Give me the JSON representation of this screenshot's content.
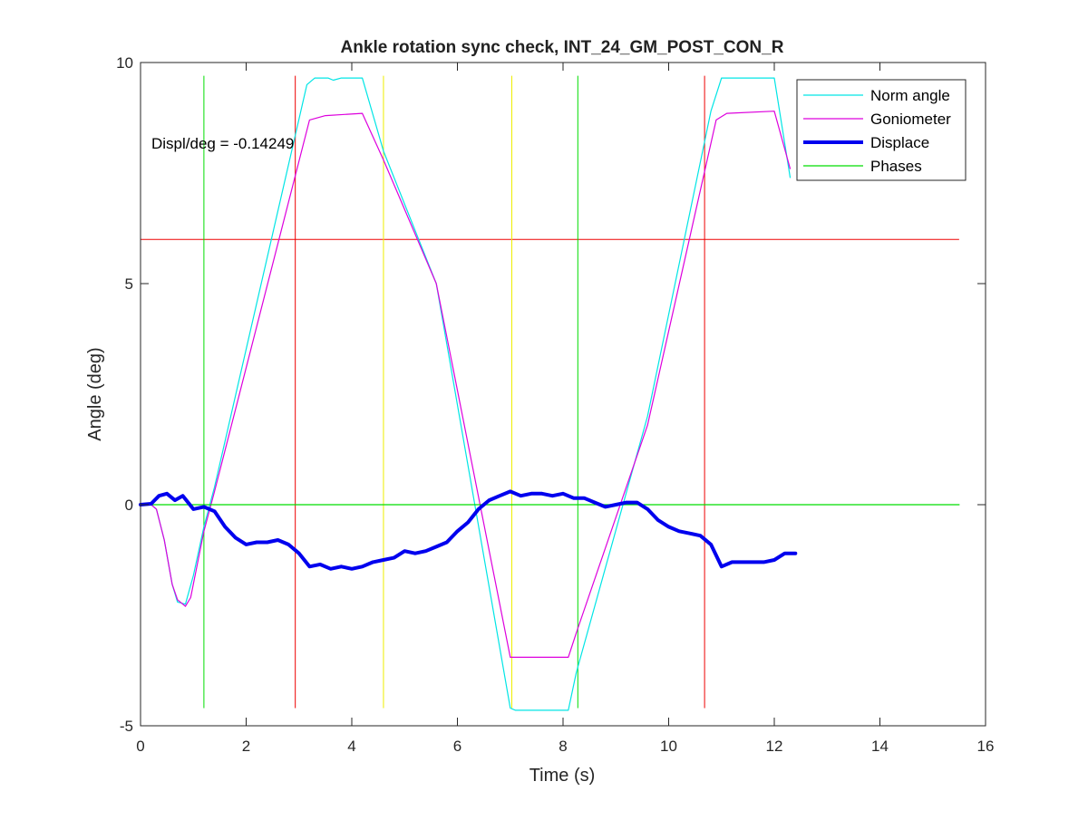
{
  "chart_data": {
    "type": "line",
    "title": "Ankle rotation sync check, INT_24_GM_POST_CON_R",
    "xlabel": "Time (s)",
    "ylabel": "Angle (deg)",
    "xlim": [
      0,
      16
    ],
    "ylim": [
      -5,
      10
    ],
    "x_ticks": [
      0,
      2,
      4,
      6,
      8,
      10,
      12,
      14,
      16
    ],
    "x_tick_labels": [
      "0",
      "2",
      "4",
      "6",
      "8",
      "10",
      "12",
      "14",
      "16"
    ],
    "y_ticks": [
      -5,
      0,
      5,
      10
    ],
    "y_tick_labels": [
      "-5",
      "0",
      "5",
      "10"
    ],
    "grid": false,
    "legend_position": "top-right",
    "annotation": "Displ/deg = -0.14249",
    "series": [
      {
        "name": "Norm angle",
        "color": "#00e5e5",
        "style": "thin",
        "x": [
          0,
          0.2,
          0.3,
          0.45,
          0.6,
          0.7,
          0.85,
          1.0,
          1.2,
          1.4,
          3.15,
          3.3,
          3.55,
          3.65,
          3.8,
          4.2,
          4.6,
          5.6,
          7.0,
          7.1,
          8.1,
          8.25,
          9.6,
          10.8,
          11.0,
          12.0,
          12.3
        ],
        "y": [
          0,
          0,
          -0.1,
          -0.8,
          -1.8,
          -2.2,
          -2.25,
          -1.6,
          -0.5,
          0.4,
          9.5,
          9.65,
          9.65,
          9.6,
          9.65,
          9.65,
          8.0,
          5.0,
          -4.6,
          -4.65,
          -4.65,
          -3.8,
          2.0,
          8.9,
          9.65,
          9.65,
          7.4
        ]
      },
      {
        "name": "Goniometer",
        "color": "#dd00dd",
        "style": "thin",
        "x": [
          0,
          0.2,
          0.3,
          0.45,
          0.6,
          0.7,
          0.85,
          0.95,
          1.2,
          1.4,
          3.2,
          3.5,
          4.2,
          4.6,
          5.6,
          7.0,
          8.1,
          8.25,
          9.6,
          10.9,
          11.1,
          12.0,
          12.3
        ],
        "y": [
          0,
          0,
          -0.1,
          -0.8,
          -1.8,
          -2.15,
          -2.3,
          -2.1,
          -0.6,
          0.3,
          8.7,
          8.8,
          8.85,
          7.8,
          5.0,
          -3.45,
          -3.45,
          -2.9,
          1.8,
          8.7,
          8.85,
          8.9,
          7.6
        ]
      },
      {
        "name": "Displace",
        "color": "#0000ee",
        "style": "thick",
        "x": [
          0,
          0.2,
          0.35,
          0.5,
          0.65,
          0.8,
          1.0,
          1.2,
          1.4,
          1.6,
          1.8,
          2.0,
          2.2,
          2.4,
          2.6,
          2.8,
          3.0,
          3.2,
          3.4,
          3.6,
          3.8,
          4.0,
          4.2,
          4.4,
          4.6,
          4.8,
          5.0,
          5.2,
          5.4,
          5.6,
          5.8,
          6.0,
          6.2,
          6.4,
          6.6,
          6.8,
          7.0,
          7.2,
          7.4,
          7.6,
          7.8,
          8.0,
          8.2,
          8.4,
          8.6,
          8.8,
          9.0,
          9.2,
          9.4,
          9.6,
          9.8,
          10.0,
          10.2,
          10.4,
          10.6,
          10.8,
          11.0,
          11.2,
          11.4,
          11.6,
          11.8,
          12.0,
          12.2,
          12.4
        ],
        "y": [
          0,
          0.02,
          0.2,
          0.25,
          0.1,
          0.2,
          -0.1,
          -0.05,
          -0.15,
          -0.5,
          -0.75,
          -0.9,
          -0.85,
          -0.85,
          -0.8,
          -0.9,
          -1.1,
          -1.4,
          -1.35,
          -1.45,
          -1.4,
          -1.45,
          -1.4,
          -1.3,
          -1.25,
          -1.2,
          -1.05,
          -1.1,
          -1.05,
          -0.95,
          -0.85,
          -0.6,
          -0.4,
          -0.1,
          0.1,
          0.2,
          0.3,
          0.2,
          0.25,
          0.25,
          0.2,
          0.25,
          0.15,
          0.15,
          0.05,
          -0.05,
          0.0,
          0.05,
          0.05,
          -0.1,
          -0.35,
          -0.5,
          -0.6,
          -0.65,
          -0.7,
          -0.9,
          -1.4,
          -1.3,
          -1.3,
          -1.3,
          -1.3,
          -1.25,
          -1.1,
          -1.1
        ]
      },
      {
        "name": "Phases",
        "color": "#00dd00",
        "style": "thin",
        "x": [
          0,
          15.5
        ],
        "y": [
          0,
          0
        ]
      }
    ],
    "reference_lines": {
      "horizontal": [
        {
          "y": 6,
          "color": "#ee0000",
          "x_range": [
            0,
            15.5
          ]
        }
      ],
      "vertical": [
        {
          "x": 1.2,
          "color": "#00dd00",
          "y_range": [
            -4.6,
            9.7
          ]
        },
        {
          "x": 2.93,
          "color": "#ee0000",
          "y_range": [
            -4.6,
            9.7
          ]
        },
        {
          "x": 4.6,
          "color": "#eeee00",
          "y_range": [
            -4.6,
            9.7
          ]
        },
        {
          "x": 7.03,
          "color": "#eeee00",
          "y_range": [
            -4.6,
            9.7
          ]
        },
        {
          "x": 8.28,
          "color": "#00dd00",
          "y_range": [
            -4.6,
            9.7
          ]
        },
        {
          "x": 10.68,
          "color": "#ee0000",
          "y_range": [
            -4.6,
            9.7
          ]
        }
      ]
    }
  }
}
